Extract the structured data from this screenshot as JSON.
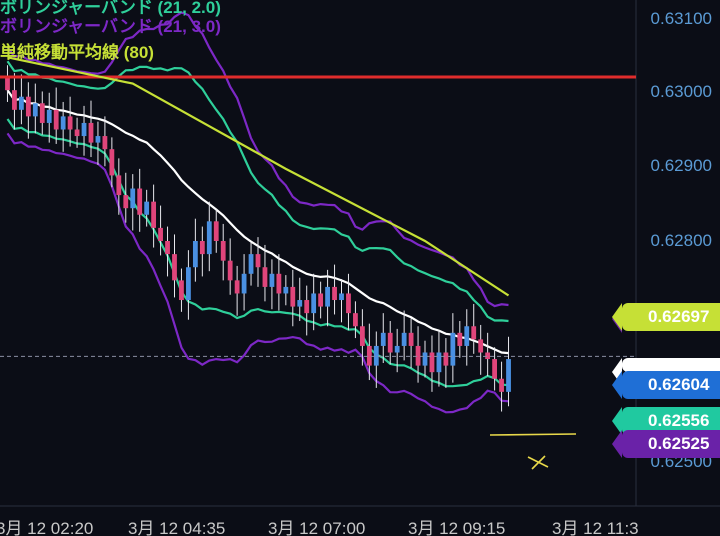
{
  "legend": {
    "bb2": "ボリンジャーバンド (21, 2.0)",
    "bb3": "ボリンジャーバンド (21, 3.0)",
    "sma": "単純移動平均線 (80)"
  },
  "price_axis": {
    "ticks": [
      "0.63100",
      "0.63000",
      "0.62900",
      "0.62800",
      "0.62500"
    ]
  },
  "time_axis": {
    "ticks": [
      "3月 12 02:20",
      "3月 12 04:35",
      "3月 12 07:00",
      "3月 12 09:15",
      "3月 12 11:3"
    ]
  },
  "price_badges": [
    {
      "label": "0.62697",
      "color": "#c6e036",
      "text_color": "#ffffff"
    },
    {
      "label": "0.62604",
      "color": "#1f6fd6",
      "text_color": "#ffffff"
    },
    {
      "label": "0.62556",
      "color": "#20c9a0",
      "text_color": "#ffffff"
    },
    {
      "label": "0.62525",
      "color": "#6a22a8",
      "text_color": "#ffffff"
    }
  ],
  "colors": {
    "background": "#0b0d16",
    "up_candle": "#4a90e2",
    "down_candle": "#e0457b",
    "bb_mid": "#ffffff",
    "bb2_band": "#2fcf9a",
    "bb3_band": "#7d28c6",
    "sma": "#c6e036",
    "horizontal_line": "#e02c2c",
    "axis_text": "#5b9bd5"
  },
  "chart_data": {
    "type": "candlestick",
    "ylim": [
      0.6244,
      0.6312
    ],
    "horizontal_line_price": 0.6303,
    "current_price": 0.62604,
    "close": [
      0.6301,
      0.6298,
      0.63,
      0.6297,
      0.6299,
      0.6296,
      0.6298,
      0.6295,
      0.6297,
      0.6295,
      0.6294,
      0.6296,
      0.6293,
      0.6294,
      0.6292,
      0.6288,
      0.6285,
      0.6283,
      0.6286,
      0.6282,
      0.6284,
      0.628,
      0.6278,
      0.6276,
      0.6272,
      0.6269,
      0.6274,
      0.6278,
      0.6276,
      0.6281,
      0.6278,
      0.6275,
      0.6272,
      0.627,
      0.6273,
      0.6276,
      0.6274,
      0.6271,
      0.6273,
      0.627,
      0.6271,
      0.6268,
      0.6269,
      0.6267,
      0.627,
      0.6268,
      0.6271,
      0.6269,
      0.627,
      0.6267,
      0.6265,
      0.6262,
      0.6259,
      0.6262,
      0.6264,
      0.6261,
      0.6262,
      0.6264,
      0.6262,
      0.6259,
      0.6261,
      0.6258,
      0.6261,
      0.6259,
      0.6264,
      0.6262,
      0.6265,
      0.6263,
      0.6261,
      0.626,
      0.6257,
      0.6255,
      0.626
    ]
  }
}
